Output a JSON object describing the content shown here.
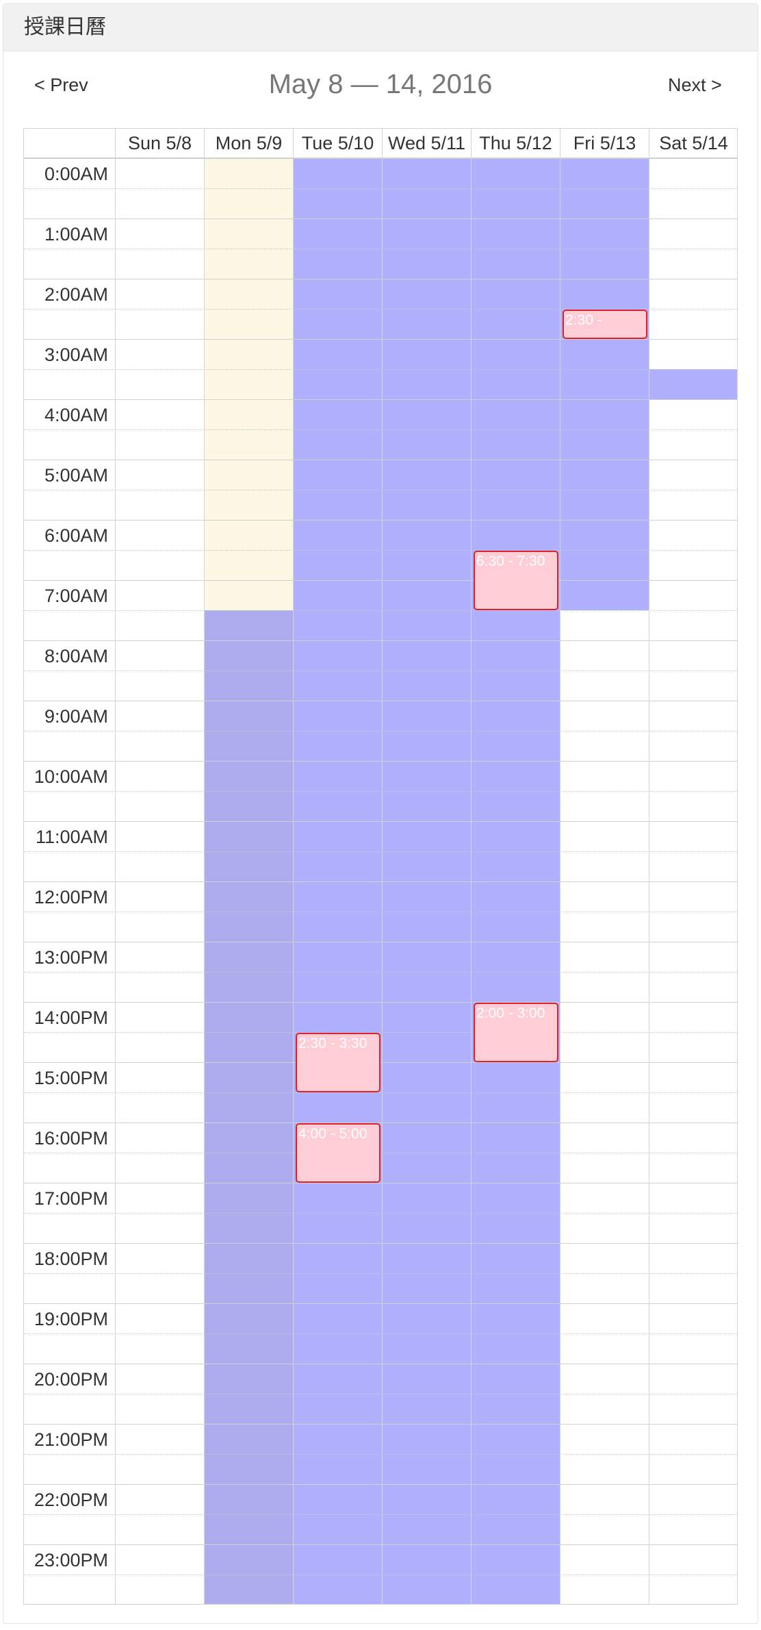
{
  "panel_title": "授課日曆",
  "nav": {
    "prev_label": "< Prev",
    "next_label": "Next >"
  },
  "date_range": "May 8 — 14, 2016",
  "days": [
    "Sun 5/8",
    "Mon 5/9",
    "Tue 5/10",
    "Wed 5/11",
    "Thu 5/12",
    "Fri 5/13",
    "Sat 5/14"
  ],
  "hours": [
    "0:00AM",
    "1:00AM",
    "2:00AM",
    "3:00AM",
    "4:00AM",
    "5:00AM",
    "6:00AM",
    "7:00AM",
    "8:00AM",
    "9:00AM",
    "10:00AM",
    "11:00AM",
    "12:00PM",
    "13:00PM",
    "14:00PM",
    "15:00PM",
    "16:00PM",
    "17:00PM",
    "18:00PM",
    "19:00PM",
    "20:00PM",
    "21:00PM",
    "22:00PM",
    "23:00PM"
  ],
  "colors": {
    "available": "#b0b0fe",
    "available_mon": "#afabef",
    "highlight_today": "#fcf8e3",
    "event_fill": "#ffcdd6",
    "event_border": "#d8232a"
  },
  "availability": [
    {
      "day": 1,
      "start": 0,
      "end": 7.5,
      "kind": "today"
    },
    {
      "day": 1,
      "start": 7.5,
      "end": 24,
      "kind": "mon"
    },
    {
      "day": 2,
      "start": 0,
      "end": 24,
      "kind": "avail"
    },
    {
      "day": 3,
      "start": 0,
      "end": 24,
      "kind": "avail"
    },
    {
      "day": 4,
      "start": 0,
      "end": 24,
      "kind": "avail"
    },
    {
      "day": 5,
      "start": 0,
      "end": 7.5,
      "kind": "avail"
    },
    {
      "day": 6,
      "start": 3.5,
      "end": 4,
      "kind": "avail"
    }
  ],
  "events": [
    {
      "day": 5,
      "start": 2.5,
      "end": 3,
      "label": "2:30 -"
    },
    {
      "day": 4,
      "start": 6.5,
      "end": 7.5,
      "label": "6:30 - 7:30"
    },
    {
      "day": 4,
      "start": 14,
      "end": 15,
      "label": "2:00 - 3:00"
    },
    {
      "day": 2,
      "start": 14.5,
      "end": 15.5,
      "label": "2:30 - 3:30"
    },
    {
      "day": 2,
      "start": 16,
      "end": 17,
      "label": "4:00 - 5:00"
    }
  ]
}
